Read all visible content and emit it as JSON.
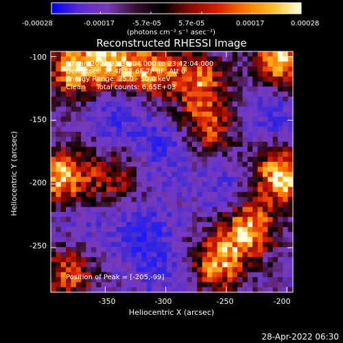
{
  "colorbar": {
    "tick_labels": [
      "-0.00028",
      "-0.00017",
      "-5.7e-05",
      "5.7e-05",
      "0.00017",
      "0.00028"
    ],
    "tick_values": [
      -0.00028,
      -0.00017,
      -5.7e-05,
      5.7e-05,
      0.00017,
      0.00028
    ],
    "range": [
      -0.00028,
      0.00028
    ],
    "units_label": "(photons cm⁻² s⁻¹ asec⁻²)",
    "colors": [
      "#0000ff",
      "#5a2ad0",
      "#7a3ab8",
      "#3a1030",
      "#000000",
      "#8a0a00",
      "#d82000",
      "#ff7a00",
      "#ffc02a",
      "#ffffe0"
    ]
  },
  "title": "Reconstructed RHESSI Image",
  "annotations": {
    "time": "17-Jan-2004 23:36:04.000 to 23:42:04.000",
    "detectors": "Detectors: 3F 4F 5F 6F 7F 8F, Att 0",
    "energy": "Energy Range: 25.0 - 50.0 keV",
    "clean": "Clean     Total counts: 6.65E+03",
    "peak": "Position of Peak = [-205,-99]"
  },
  "footer_timestamp": "28-Apr-2022 06:30",
  "chart_data": {
    "type": "heatmap",
    "title": "Reconstructed RHESSI Image",
    "xlabel": "Heliocentric X (arcsec)",
    "ylabel": "Heliocentric Y (arcsec)",
    "xlim": [
      -395,
      -195
    ],
    "ylim": [
      -285,
      -96
    ],
    "x_ticks": [
      -350,
      -300,
      -250,
      -200
    ],
    "y_ticks": [
      -100,
      -150,
      -200,
      -250
    ],
    "hotspots": [
      {
        "x": -387,
        "y": -195,
        "level": 0.9
      },
      {
        "x": -378,
        "y": -110,
        "level": 0.75
      },
      {
        "x": -345,
        "y": -103,
        "level": 0.8
      },
      {
        "x": -312,
        "y": -112,
        "level": 0.65
      },
      {
        "x": -273,
        "y": -118,
        "level": 0.6
      },
      {
        "x": -265,
        "y": -155,
        "level": 0.55
      },
      {
        "x": -205,
        "y": -103,
        "level": 0.9
      },
      {
        "x": -205,
        "y": -193,
        "level": 1.0
      },
      {
        "x": -232,
        "y": -235,
        "level": 0.85
      },
      {
        "x": -258,
        "y": -263,
        "level": 0.75
      },
      {
        "x": -380,
        "y": -270,
        "level": 0.55
      },
      {
        "x": -345,
        "y": -195,
        "level": 0.35
      }
    ],
    "coldspots": [
      {
        "x": -338,
        "y": -145,
        "level": -0.75
      },
      {
        "x": -300,
        "y": -173,
        "level": -0.75
      },
      {
        "x": -320,
        "y": -240,
        "level": -0.85
      },
      {
        "x": -250,
        "y": -205,
        "level": -0.6
      },
      {
        "x": -215,
        "y": -147,
        "level": -0.7
      },
      {
        "x": -370,
        "y": -228,
        "level": -0.55
      },
      {
        "x": -300,
        "y": -270,
        "level": -0.6
      }
    ],
    "peak_position": [
      -205,
      -99
    ]
  }
}
